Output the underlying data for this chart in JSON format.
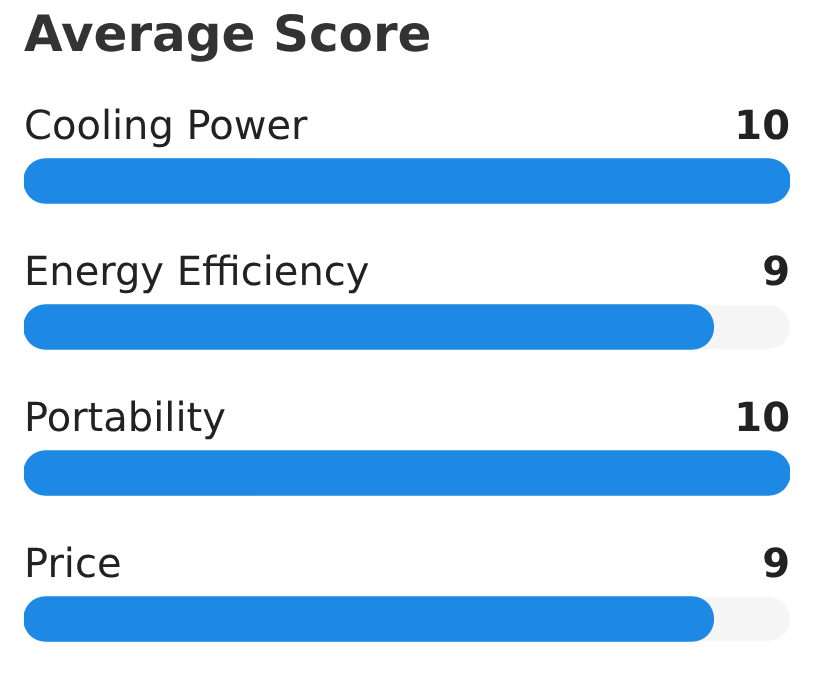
{
  "chart_data": {
    "type": "bar",
    "orientation": "horizontal",
    "title": "Average Score",
    "categories": [
      "Cooling Power",
      "Energy Efficiency",
      "Portability",
      "Price"
    ],
    "values": [
      10,
      9,
      10,
      9
    ],
    "color": "#1e88e5",
    "xlim": [
      0,
      10
    ],
    "data_labels": true,
    "tick_labels": false
  }
}
